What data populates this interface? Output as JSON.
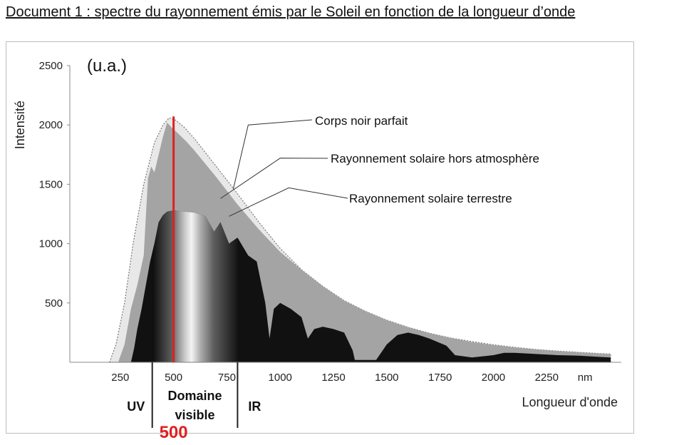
{
  "document_title": "Document 1 : spectre du rayonnement émis par le Soleil en fonction de la longueur d’onde",
  "chart_data": {
    "type": "area",
    "unit_label": "(u.a.)",
    "ylabel": "Intensité",
    "xlabel": "Longueur d'onde",
    "x_unit": "nm",
    "xlim": [
      0,
      2600
    ],
    "ylim": [
      0,
      2500
    ],
    "x_ticks": [
      "250",
      "500",
      "750",
      "1000",
      "1250",
      "1500",
      "1750",
      "2000",
      "2250"
    ],
    "y_ticks": [
      "500",
      "1000",
      "1500",
      "2000",
      "2500"
    ],
    "series": [
      {
        "name": "Corps noir parfait",
        "color": "#e8e8e8",
        "points": [
          [
            200,
            0
          ],
          [
            230,
            150
          ],
          [
            270,
            500
          ],
          [
            310,
            1000
          ],
          [
            360,
            1500
          ],
          [
            410,
            1850
          ],
          [
            450,
            2000
          ],
          [
            480,
            2060
          ],
          [
            510,
            2040
          ],
          [
            550,
            1980
          ],
          [
            600,
            1880
          ],
          [
            700,
            1650
          ],
          [
            800,
            1420
          ],
          [
            900,
            1180
          ],
          [
            1000,
            960
          ],
          [
            1100,
            780
          ],
          [
            1200,
            640
          ],
          [
            1300,
            520
          ],
          [
            1400,
            430
          ],
          [
            1500,
            355
          ],
          [
            1600,
            295
          ],
          [
            1700,
            245
          ],
          [
            1800,
            205
          ],
          [
            1900,
            175
          ],
          [
            2000,
            148
          ],
          [
            2100,
            126
          ],
          [
            2200,
            108
          ],
          [
            2300,
            95
          ],
          [
            2400,
            84
          ],
          [
            2500,
            74
          ],
          [
            2550,
            70
          ]
        ]
      },
      {
        "name": "Rayonnement solaire hors atmosphère",
        "color": "#a4a4a4",
        "points": [
          [
            240,
            0
          ],
          [
            270,
            150
          ],
          [
            300,
            450
          ],
          [
            330,
            650
          ],
          [
            360,
            900
          ],
          [
            380,
            1550
          ],
          [
            395,
            1650
          ],
          [
            410,
            1600
          ],
          [
            430,
            1750
          ],
          [
            450,
            1900
          ],
          [
            470,
            2020
          ],
          [
            490,
            1980
          ],
          [
            520,
            1930
          ],
          [
            560,
            1860
          ],
          [
            600,
            1780
          ],
          [
            700,
            1560
          ],
          [
            800,
            1330
          ],
          [
            900,
            1120
          ],
          [
            1000,
            930
          ],
          [
            1100,
            780
          ],
          [
            1200,
            640
          ],
          [
            1300,
            520
          ],
          [
            1400,
            430
          ],
          [
            1500,
            355
          ],
          [
            1600,
            295
          ],
          [
            1700,
            245
          ],
          [
            1800,
            205
          ],
          [
            1900,
            170
          ],
          [
            2000,
            145
          ],
          [
            2100,
            125
          ],
          [
            2200,
            108
          ],
          [
            2300,
            95
          ],
          [
            2400,
            85
          ],
          [
            2500,
            74
          ],
          [
            2550,
            70
          ]
        ]
      },
      {
        "name": "Rayonnement solaire terrestre",
        "color": "#111111",
        "points": [
          [
            300,
            0
          ],
          [
            315,
            120
          ],
          [
            330,
            280
          ],
          [
            350,
            450
          ],
          [
            370,
            650
          ],
          [
            390,
            850
          ],
          [
            410,
            1000
          ],
          [
            430,
            1180
          ],
          [
            450,
            1240
          ],
          [
            470,
            1270
          ],
          [
            500,
            1280
          ],
          [
            550,
            1270
          ],
          [
            600,
            1260
          ],
          [
            650,
            1230
          ],
          [
            690,
            1100
          ],
          [
            720,
            1180
          ],
          [
            760,
            1000
          ],
          [
            800,
            1050
          ],
          [
            850,
            900
          ],
          [
            890,
            850
          ],
          [
            930,
            500
          ],
          [
            950,
            200
          ],
          [
            970,
            450
          ],
          [
            1000,
            500
          ],
          [
            1050,
            450
          ],
          [
            1100,
            380
          ],
          [
            1130,
            200
          ],
          [
            1160,
            280
          ],
          [
            1200,
            300
          ],
          [
            1250,
            280
          ],
          [
            1300,
            250
          ],
          [
            1340,
            100
          ],
          [
            1350,
            20
          ],
          [
            1450,
            20
          ],
          [
            1500,
            150
          ],
          [
            1550,
            230
          ],
          [
            1600,
            250
          ],
          [
            1650,
            230
          ],
          [
            1700,
            200
          ],
          [
            1780,
            140
          ],
          [
            1820,
            60
          ],
          [
            1900,
            40
          ],
          [
            2000,
            60
          ],
          [
            2050,
            80
          ],
          [
            2100,
            80
          ],
          [
            2200,
            70
          ],
          [
            2300,
            60
          ],
          [
            2400,
            55
          ],
          [
            2500,
            45
          ],
          [
            2550,
            40
          ]
        ]
      }
    ],
    "highlight": {
      "x": 500,
      "label": "500",
      "color": "#e02020"
    },
    "regions": [
      {
        "label": "UV",
        "x_from": 0,
        "x_to": 400
      },
      {
        "label": "Domaine visible",
        "label_line1": "Domaine",
        "label_line2": "visible",
        "x_from": 400,
        "x_to": 800
      },
      {
        "label": "IR",
        "x_from": 800,
        "x_to": 2600
      }
    ]
  }
}
